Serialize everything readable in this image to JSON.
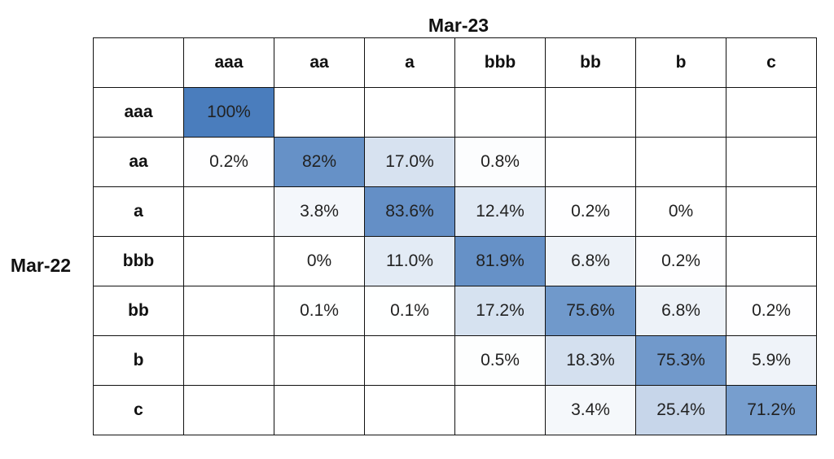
{
  "chart_data": {
    "type": "heatmap",
    "title": "Mar-23",
    "ylabel": "Mar-22",
    "columns": [
      "aaa",
      "aa",
      "a",
      "bbb",
      "bb",
      "b",
      "c"
    ],
    "rows": [
      "aaa",
      "aa",
      "a",
      "bbb",
      "bb",
      "b",
      "c"
    ],
    "cells": [
      [
        "100%",
        "",
        "",
        "",
        "",
        "",
        ""
      ],
      [
        "0.2%",
        "82%",
        "17.0%",
        "0.8%",
        "",
        "",
        ""
      ],
      [
        "",
        "3.8%",
        "83.6%",
        "12.4%",
        "0.2%",
        "0%",
        ""
      ],
      [
        "",
        "0%",
        "11.0%",
        "81.9%",
        "6.8%",
        "0.2%",
        ""
      ],
      [
        "",
        "0.1%",
        "0.1%",
        "17.2%",
        "75.6%",
        "6.8%",
        "0.2%"
      ],
      [
        "",
        "",
        "",
        "0.5%",
        "18.3%",
        "75.3%",
        "5.9%"
      ],
      [
        "",
        "",
        "",
        "",
        "3.4%",
        "25.4%",
        "71.2%"
      ]
    ],
    "values": [
      [
        100,
        null,
        null,
        null,
        null,
        null,
        null
      ],
      [
        0.2,
        82,
        17.0,
        0.8,
        null,
        null,
        null
      ],
      [
        null,
        3.8,
        83.6,
        12.4,
        0.2,
        0,
        null
      ],
      [
        null,
        0,
        11.0,
        81.9,
        6.8,
        0.2,
        null
      ],
      [
        null,
        0.1,
        0.1,
        17.2,
        75.6,
        6.8,
        0.2
      ],
      [
        null,
        null,
        null,
        0.5,
        18.3,
        75.3,
        5.9
      ],
      [
        null,
        null,
        null,
        null,
        3.4,
        25.4,
        71.2
      ]
    ],
    "color_scale": {
      "low": "#ffffff",
      "high": "#4a7dbd",
      "max_value": 100
    }
  }
}
